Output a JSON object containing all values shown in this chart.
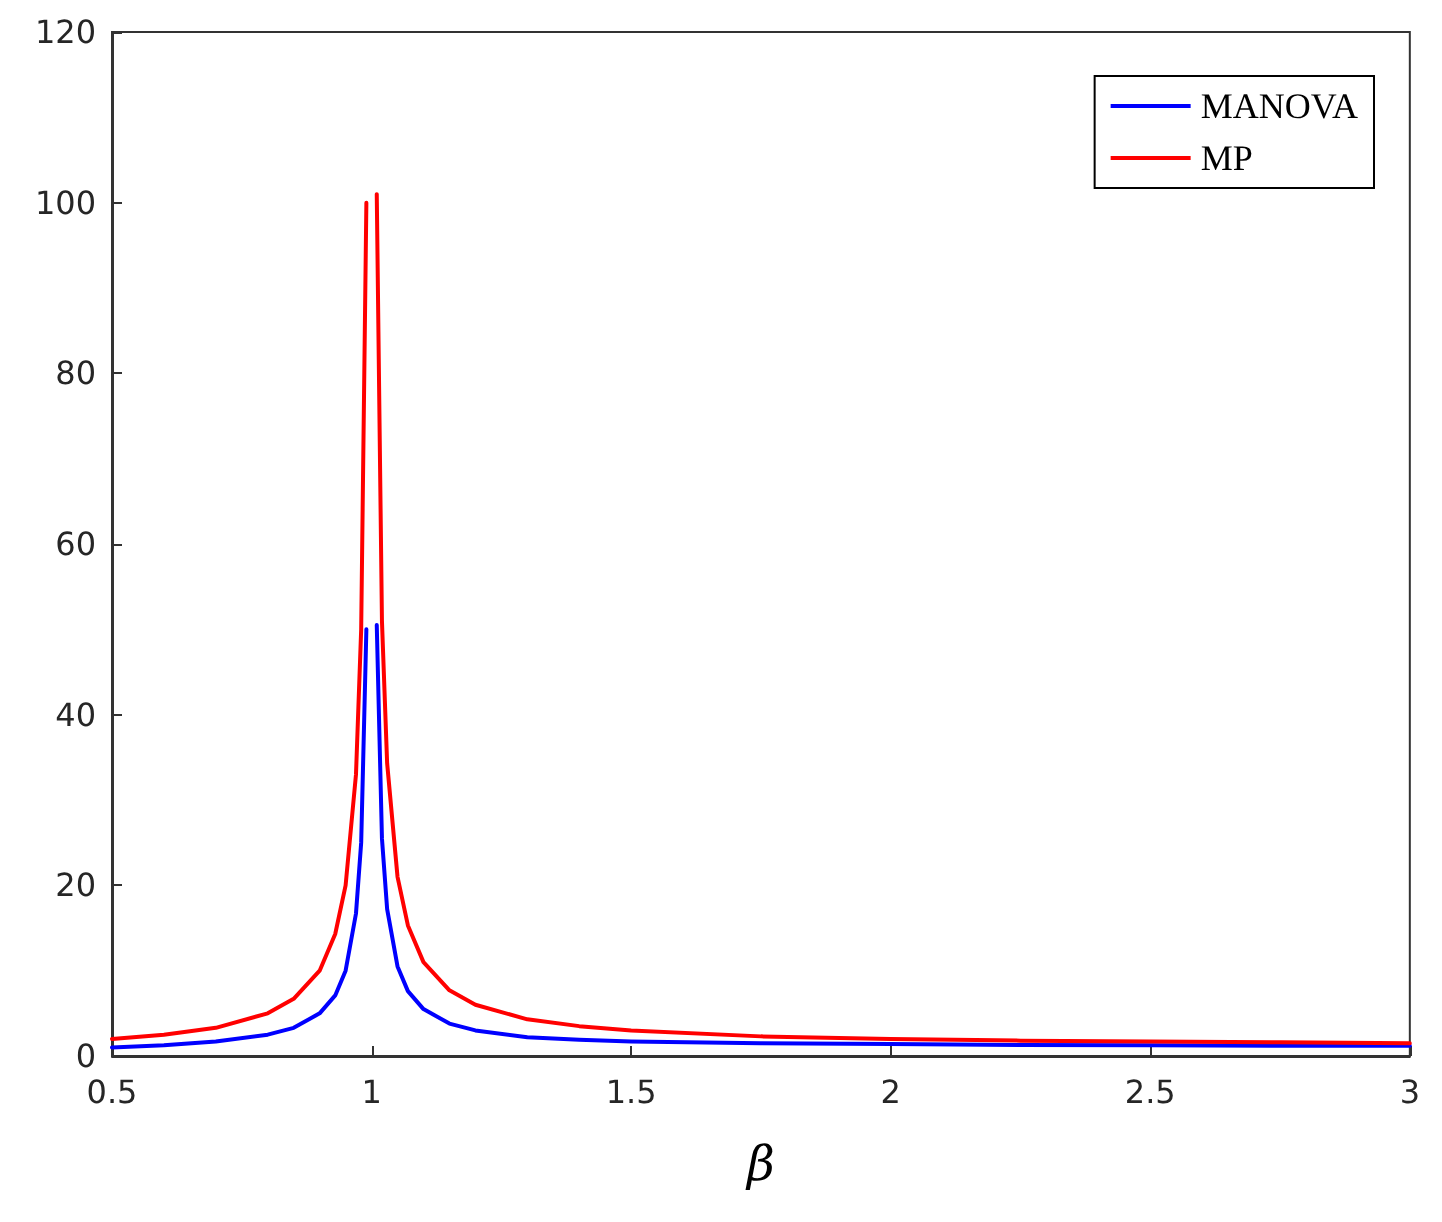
{
  "chart_data": {
    "type": "line",
    "xlabel": "β",
    "x": [
      0.5,
      0.6,
      0.7,
      0.8,
      0.85,
      0.9,
      0.93,
      0.95,
      0.97,
      0.98,
      0.99,
      1,
      1.01,
      1.02,
      1.03,
      1.05,
      1.07,
      1.1,
      1.15,
      1.2,
      1.3,
      1.4,
      1.5,
      1.75,
      2,
      2.25,
      2.5,
      2.75,
      3
    ],
    "series": [
      {
        "name": "MANOVA",
        "color": "#0000ff",
        "values": [
          1,
          1.25,
          1.7,
          2.5,
          3.3,
          5,
          7.1,
          10,
          16.7,
          25,
          50,
          null,
          50.5,
          25.5,
          17.2,
          10.5,
          7.6,
          5.5,
          3.8,
          3,
          2.2,
          1.9,
          1.7,
          1.5,
          1.4,
          1.3,
          1.25,
          1.2,
          1.2
        ]
      },
      {
        "name": "MP",
        "color": "#ff0000",
        "values": [
          2,
          2.5,
          3.3,
          5,
          6.7,
          10,
          14.3,
          20,
          33,
          50,
          100,
          null,
          101,
          51,
          34.3,
          21,
          15.3,
          11,
          7.7,
          6,
          4.3,
          3.5,
          3,
          2.3,
          2,
          1.8,
          1.7,
          1.6,
          1.5
        ]
      }
    ],
    "xlim": [
      0.5,
      3
    ],
    "xticks": [
      0.5,
      1,
      1.5,
      2,
      2.5,
      3
    ],
    "ylim": [
      0,
      120
    ],
    "yticks": [
      0,
      20,
      40,
      60,
      80,
      100,
      120
    ],
    "grid": false,
    "legend": "top right",
    "marker": "none",
    "line_style": "solid"
  }
}
